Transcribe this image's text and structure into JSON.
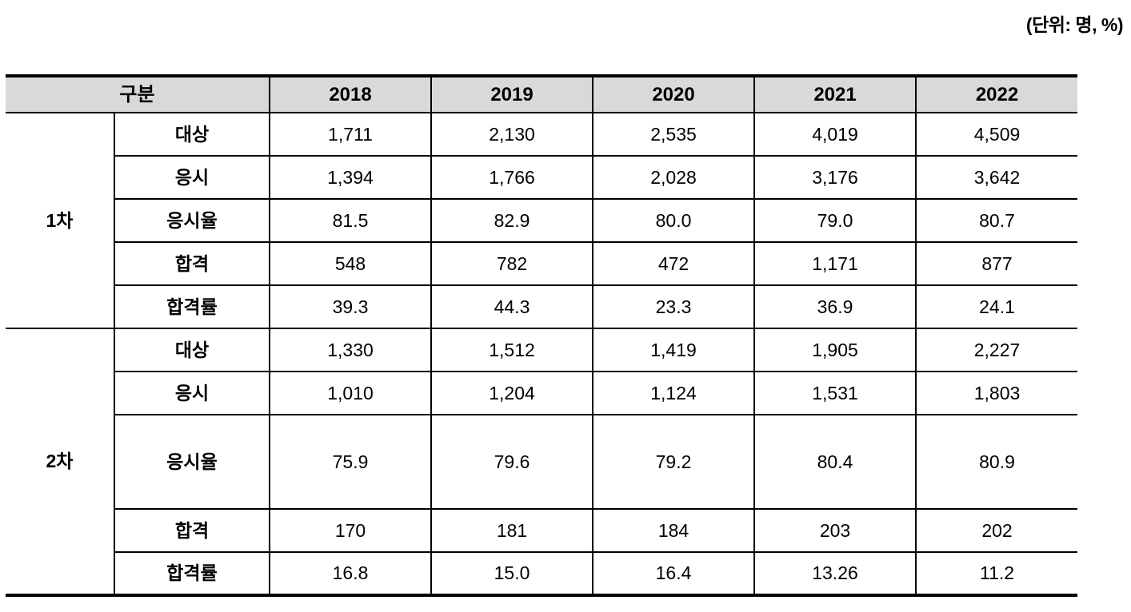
{
  "unit_note": "(단위: 명, %)",
  "table": {
    "header": {
      "group_label": "구분",
      "years": [
        "2018",
        "2019",
        "2020",
        "2021",
        "2022"
      ]
    },
    "groups": [
      {
        "label": "1차",
        "rows": [
          {
            "label": "대상",
            "values": [
              "1,711",
              "2,130",
              "2,535",
              "4,019",
              "4,509"
            ]
          },
          {
            "label": "응시",
            "values": [
              "1,394",
              "1,766",
              "2,028",
              "3,176",
              "3,642"
            ]
          },
          {
            "label": "응시율",
            "values": [
              "81.5",
              "82.9",
              "80.0",
              "79.0",
              "80.7"
            ]
          },
          {
            "label": "합격",
            "values": [
              "548",
              "782",
              "472",
              "1,171",
              "877"
            ]
          },
          {
            "label": "합격률",
            "values": [
              "39.3",
              "44.3",
              "23.3",
              "36.9",
              "24.1"
            ]
          }
        ]
      },
      {
        "label": "2차",
        "rows": [
          {
            "label": "대상",
            "values": [
              "1,330",
              "1,512",
              "1,419",
              "1,905",
              "2,227"
            ]
          },
          {
            "label": "응시",
            "values": [
              "1,010",
              "1,204",
              "1,124",
              "1,531",
              "1,803"
            ]
          },
          {
            "label": "응시율",
            "values": [
              "75.9",
              "79.6",
              "79.2",
              "80.4",
              "80.9"
            ]
          },
          {
            "label": "합격",
            "values": [
              "170",
              "181",
              "184",
              "203",
              "202"
            ]
          },
          {
            "label": "합격률",
            "values": [
              "16.8",
              "15.0",
              "16.4",
              "13.26",
              "11.2"
            ]
          }
        ]
      }
    ]
  }
}
